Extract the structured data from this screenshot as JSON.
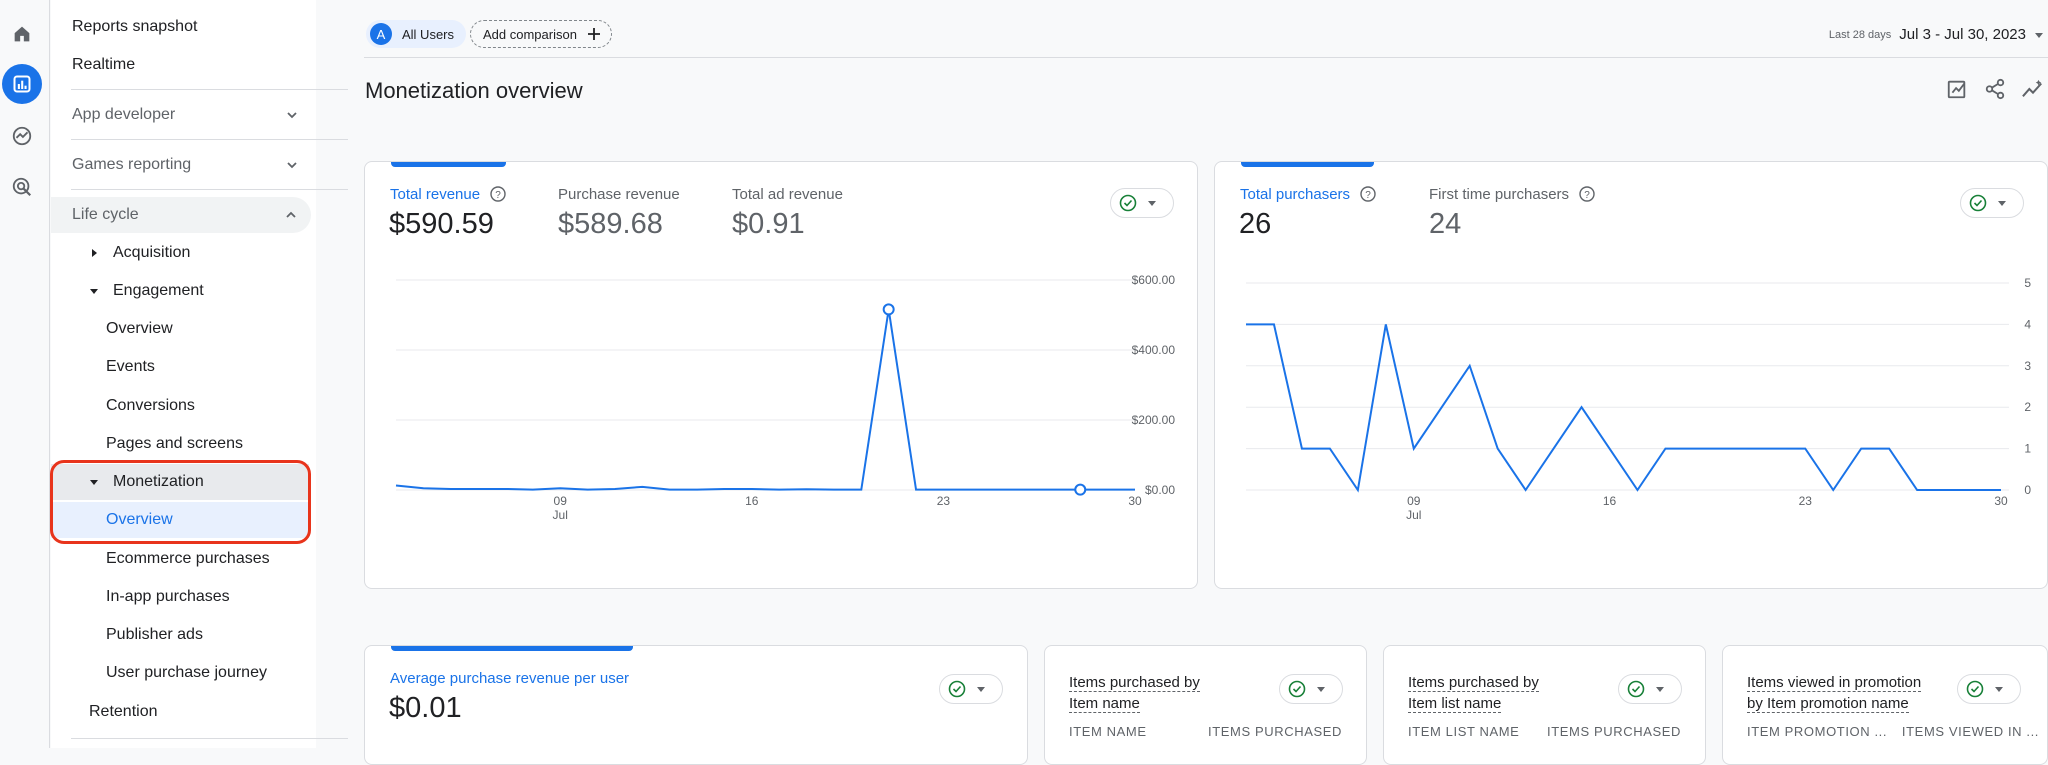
{
  "nav": {
    "items": [
      {
        "label": "Reports snapshot"
      },
      {
        "label": "Realtime"
      },
      {
        "label": "App developer"
      },
      {
        "label": "Games reporting"
      },
      {
        "label": "Life cycle"
      },
      {
        "label": "Acquisition"
      },
      {
        "label": "Engagement"
      },
      {
        "label": "Overview"
      },
      {
        "label": "Events"
      },
      {
        "label": "Conversions"
      },
      {
        "label": "Pages and screens"
      },
      {
        "label": "Monetization"
      },
      {
        "label": "Overview"
      },
      {
        "label": "Ecommerce purchases"
      },
      {
        "label": "In-app purchases"
      },
      {
        "label": "Publisher ads"
      },
      {
        "label": "User purchase journey"
      },
      {
        "label": "Retention"
      }
    ]
  },
  "header": {
    "segment_avatar": "A",
    "segment_label": "All Users",
    "add_comparison": "Add comparison",
    "date_prefix": "Last 28 days",
    "date_range": "Jul 3 - Jul 30, 2023",
    "page_title": "Monetization overview"
  },
  "revenue_card": {
    "metrics": [
      {
        "label": "Total revenue",
        "value": "$590.59"
      },
      {
        "label": "Purchase revenue",
        "value": "$589.68"
      },
      {
        "label": "Total ad revenue",
        "value": "$0.91"
      }
    ]
  },
  "purchasers_card": {
    "metrics": [
      {
        "label": "Total purchasers",
        "value": "26"
      },
      {
        "label": "First time purchasers",
        "value": "24"
      }
    ]
  },
  "avg_card": {
    "label": "Average purchase revenue per user",
    "value": "$0.01"
  },
  "items_cards": [
    {
      "title_line1": "Items purchased by",
      "title_line2": "Item name",
      "col1": "ITEM NAME",
      "col2": "ITEMS PURCHASED"
    },
    {
      "title_line1": "Items purchased by",
      "title_line2": "Item list name",
      "col1": "ITEM LIST NAME",
      "col2": "ITEMS PURCHASED"
    },
    {
      "title_line1": "Items viewed in promotion",
      "title_line2": "by Item promotion name",
      "col1": "ITEM PROMOTION ...",
      "col2": "ITEMS VIEWED IN ..."
    }
  ],
  "chart_data": [
    {
      "type": "line",
      "series": [
        {
          "name": "Total revenue",
          "color": "#1a73e8"
        }
      ],
      "x": [
        3,
        4,
        5,
        6,
        7,
        8,
        9,
        10,
        11,
        12,
        13,
        14,
        15,
        16,
        17,
        18,
        19,
        20,
        21,
        22,
        23,
        24,
        25,
        26,
        27,
        28,
        29,
        30
      ],
      "y": [
        13,
        5,
        3,
        3,
        3,
        1,
        5,
        1,
        3,
        9,
        1,
        1,
        3,
        3,
        1,
        2,
        1,
        1,
        516,
        1,
        1,
        1,
        1,
        1,
        1,
        1,
        1,
        1
      ],
      "ylim": [
        0,
        600
      ],
      "yticks": [
        "$600.00",
        "$400.00",
        "$200.00",
        "$0.00"
      ],
      "yticks_values": [
        600,
        400,
        200,
        0
      ],
      "xticks": [
        {
          "x": 9,
          "label": "09",
          "sub": "Jul"
        },
        {
          "x": 16,
          "label": "16",
          "sub": ""
        },
        {
          "x": 23,
          "label": "23",
          "sub": ""
        },
        {
          "x": 30,
          "label": "30",
          "sub": ""
        }
      ],
      "markers": [
        21,
        28
      ]
    },
    {
      "type": "line",
      "series": [
        {
          "name": "Total purchasers",
          "color": "#1a73e8"
        }
      ],
      "x": [
        3,
        4,
        5,
        6,
        7,
        8,
        9,
        10,
        11,
        12,
        13,
        14,
        15,
        16,
        17,
        18,
        19,
        20,
        21,
        22,
        23,
        24,
        25,
        26,
        27,
        28,
        29,
        30
      ],
      "y": [
        4,
        4,
        1,
        1,
        0,
        4,
        1,
        2,
        3,
        1,
        0,
        1,
        2,
        1,
        0,
        1,
        1,
        1,
        1,
        1,
        1,
        0,
        1,
        1,
        0,
        0,
        0,
        0
      ],
      "ylim": [
        0,
        5
      ],
      "yticks": [
        "5",
        "4",
        "3",
        "2",
        "1",
        "0"
      ],
      "yticks_values": [
        5,
        4,
        3,
        2,
        1,
        0
      ],
      "xticks": [
        {
          "x": 9,
          "label": "09",
          "sub": "Jul"
        },
        {
          "x": 16,
          "label": "16",
          "sub": ""
        },
        {
          "x": 23,
          "label": "23",
          "sub": ""
        },
        {
          "x": 30,
          "label": "30",
          "sub": ""
        }
      ]
    }
  ]
}
